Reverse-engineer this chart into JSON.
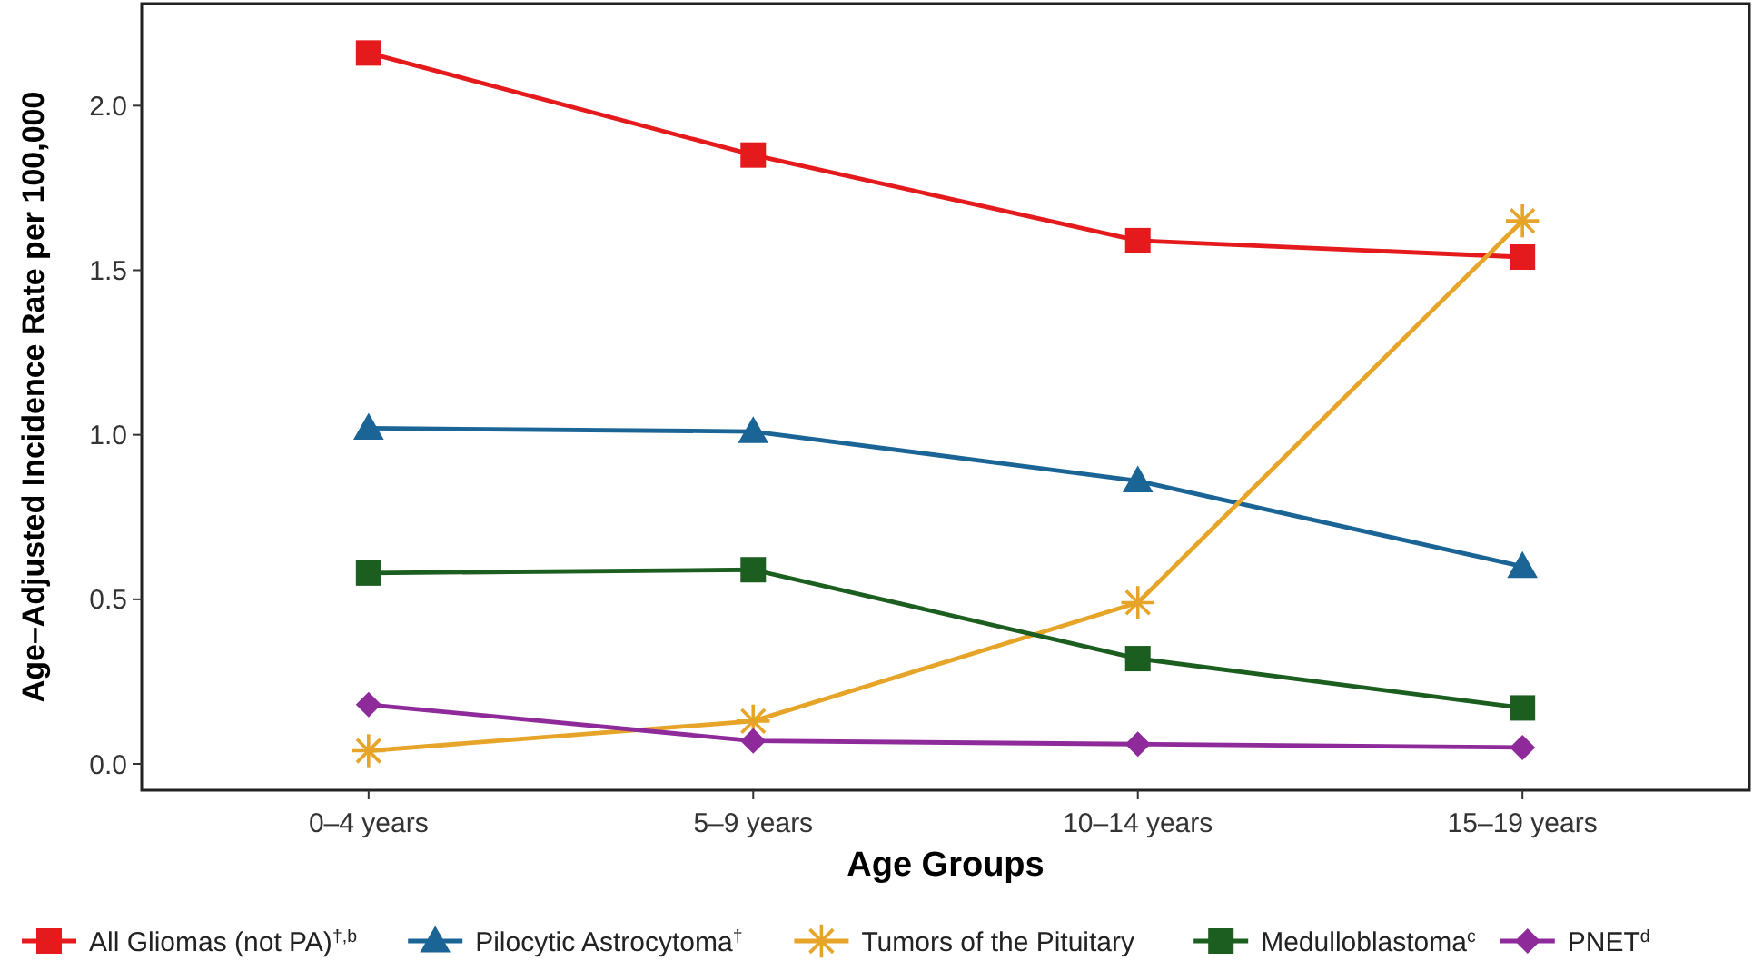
{
  "chart_data": {
    "type": "line",
    "xlabel": "Age Groups",
    "ylabel": "Age–Adjusted Incidence Rate per 100,000",
    "categories": [
      "0–4 years",
      "5–9 years",
      "10–14 years",
      "15–19 years"
    ],
    "ylim": [
      -0.08,
      2.31
    ],
    "yticks": [
      {
        "value": 0,
        "label": "0.0"
      },
      {
        "value": 0.5,
        "label": "0.5"
      },
      {
        "value": 1,
        "label": "1.0"
      },
      {
        "value": 1.5,
        "label": "1.5"
      },
      {
        "value": 2,
        "label": "2.0"
      }
    ],
    "grid": false,
    "legend": "bottom",
    "line_style": "solid",
    "series": [
      {
        "name": "All Gliomas (not PA)$^{†,b}$",
        "color": "#e41a1c",
        "marker": "square",
        "values": [
          2.16,
          1.85,
          1.59,
          1.54
        ]
      },
      {
        "name": "Pilocytic Astrocytoma$^{†}$",
        "color": "#1a6496",
        "marker": "triangle",
        "values": [
          1.02,
          1.01,
          0.86,
          0.6
        ]
      },
      {
        "name": "Tumors of the Pituitary",
        "color": "#e6a428",
        "marker": "cross",
        "values": [
          0.04,
          0.13,
          0.49,
          1.65
        ]
      },
      {
        "name": "Medulloblastoma$^{c}$",
        "color": "#1b5e20",
        "marker": "square",
        "values": [
          0.58,
          0.59,
          0.32,
          0.17
        ]
      },
      {
        "name": "PNET$^{d}$",
        "color": "#8e2a9a",
        "marker": "diamond",
        "values": [
          0.18,
          0.07,
          0.06,
          0.05
        ]
      }
    ]
  }
}
